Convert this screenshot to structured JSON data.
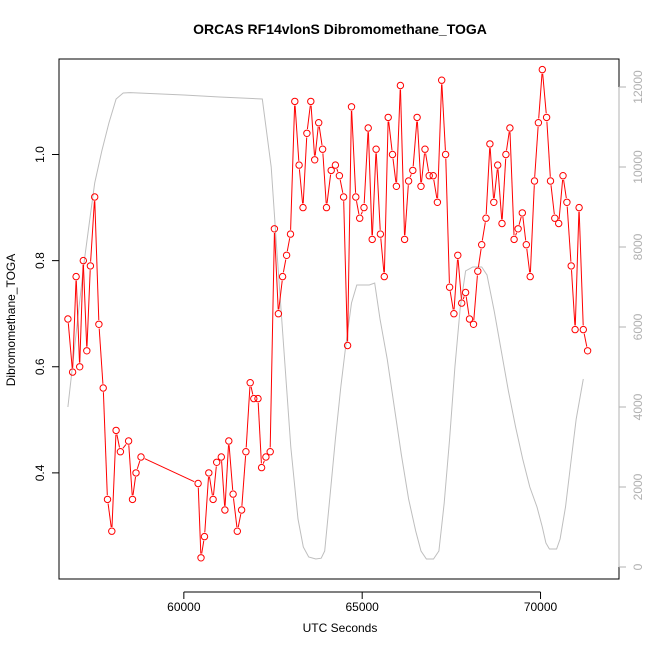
{
  "chart_data": {
    "type": "line",
    "title": "ORCAS RF14vlonS Dibromomethane_TOGA",
    "xlabel": "UTC Seconds",
    "ylabel": "Dibromomethane_TOGA",
    "xlim": [
      56500,
      72200
    ],
    "ylim": [
      0.2,
      1.18
    ],
    "y2lim": [
      -300,
      12700
    ],
    "x_ticks": [
      60000,
      65000,
      70000
    ],
    "x_tick_labels": [
      "60000",
      "65000",
      "70000"
    ],
    "y_ticks": [
      0.4,
      0.6,
      0.8,
      1.0
    ],
    "y_tick_labels": [
      "0.4",
      "0.6",
      "0.8",
      "1.0"
    ],
    "y2_ticks": [
      0,
      2000,
      4000,
      6000,
      8000,
      10000,
      12000
    ],
    "y2_tick_labels": [
      "0",
      "2000",
      "4000",
      "6000",
      "8000",
      "10000",
      "12000"
    ],
    "colors": {
      "primary": "#ff0000",
      "secondary": "#bebebe",
      "axis": "#000000",
      "axis2": "#b0b0b0"
    },
    "series": [
      {
        "role": "primary",
        "points": [
          [
            56750,
            0.69
          ],
          [
            56880,
            0.59
          ],
          [
            56980,
            0.77
          ],
          [
            57080,
            0.6
          ],
          [
            57180,
            0.8
          ],
          [
            57280,
            0.63
          ],
          [
            57380,
            0.79
          ],
          [
            57500,
            0.92
          ],
          [
            57620,
            0.68
          ],
          [
            57740,
            0.56
          ],
          [
            57860,
            0.35
          ],
          [
            57980,
            0.29
          ],
          [
            58100,
            0.48
          ],
          [
            58220,
            0.44
          ],
          [
            58450,
            0.46
          ],
          [
            58560,
            0.35
          ],
          [
            58660,
            0.4
          ],
          [
            58800,
            0.43
          ],
          [
            60400,
            0.38
          ],
          [
            60480,
            0.24
          ],
          [
            60580,
            0.28
          ],
          [
            60700,
            0.4
          ],
          [
            60820,
            0.35
          ],
          [
            60920,
            0.42
          ],
          [
            61050,
            0.43
          ],
          [
            61150,
            0.33
          ],
          [
            61260,
            0.46
          ],
          [
            61380,
            0.36
          ],
          [
            61500,
            0.29
          ],
          [
            61620,
            0.33
          ],
          [
            61740,
            0.44
          ],
          [
            61860,
            0.57
          ],
          [
            61960,
            0.54
          ],
          [
            62080,
            0.54
          ],
          [
            62180,
            0.41
          ],
          [
            62300,
            0.43
          ],
          [
            62420,
            0.44
          ],
          [
            62540,
            0.86
          ],
          [
            62650,
            0.7
          ],
          [
            62770,
            0.77
          ],
          [
            62880,
            0.81
          ],
          [
            62990,
            0.85
          ],
          [
            63110,
            1.1
          ],
          [
            63230,
            0.98
          ],
          [
            63340,
            0.9
          ],
          [
            63450,
            1.04
          ],
          [
            63560,
            1.1
          ],
          [
            63670,
            0.99
          ],
          [
            63780,
            1.06
          ],
          [
            63890,
            1.01
          ],
          [
            64000,
            0.9
          ],
          [
            64130,
            0.97
          ],
          [
            64250,
            0.98
          ],
          [
            64360,
            0.96
          ],
          [
            64480,
            0.92
          ],
          [
            64590,
            0.64
          ],
          [
            64700,
            1.09
          ],
          [
            64820,
            0.92
          ],
          [
            64930,
            0.88
          ],
          [
            65050,
            0.9
          ],
          [
            65170,
            1.05
          ],
          [
            65280,
            0.84
          ],
          [
            65390,
            1.01
          ],
          [
            65510,
            0.85
          ],
          [
            65620,
            0.77
          ],
          [
            65730,
            1.07
          ],
          [
            65850,
            1.0
          ],
          [
            65960,
            0.94
          ],
          [
            66070,
            1.13
          ],
          [
            66190,
            0.84
          ],
          [
            66300,
            0.95
          ],
          [
            66420,
            0.97
          ],
          [
            66540,
            1.07
          ],
          [
            66650,
            0.94
          ],
          [
            66760,
            1.01
          ],
          [
            66880,
            0.96
          ],
          [
            66990,
            0.96
          ],
          [
            67110,
            0.91
          ],
          [
            67230,
            1.14
          ],
          [
            67340,
            1.0
          ],
          [
            67450,
            0.75
          ],
          [
            67570,
            0.7
          ],
          [
            67680,
            0.81
          ],
          [
            67790,
            0.72
          ],
          [
            67900,
            0.74
          ],
          [
            68010,
            0.69
          ],
          [
            68120,
            0.68
          ],
          [
            68240,
            0.78
          ],
          [
            68350,
            0.83
          ],
          [
            68470,
            0.88
          ],
          [
            68580,
            1.02
          ],
          [
            68690,
            0.91
          ],
          [
            68800,
            0.98
          ],
          [
            68920,
            0.87
          ],
          [
            69030,
            1.0
          ],
          [
            69140,
            1.05
          ],
          [
            69260,
            0.84
          ],
          [
            69370,
            0.86
          ],
          [
            69490,
            0.89
          ],
          [
            69600,
            0.83
          ],
          [
            69710,
            0.77
          ],
          [
            69830,
            0.95
          ],
          [
            69940,
            1.06
          ],
          [
            70050,
            1.16
          ],
          [
            70170,
            1.07
          ],
          [
            70280,
            0.95
          ],
          [
            70400,
            0.88
          ],
          [
            70510,
            0.87
          ],
          [
            70630,
            0.96
          ],
          [
            70740,
            0.91
          ],
          [
            70860,
            0.79
          ],
          [
            70970,
            0.67
          ],
          [
            71080,
            0.9
          ],
          [
            71200,
            0.67
          ],
          [
            71320,
            0.63
          ]
        ]
      },
      {
        "role": "secondary",
        "axis": "right",
        "points": [
          [
            56750,
            4000
          ],
          [
            56900,
            5200
          ],
          [
            57050,
            6400
          ],
          [
            57200,
            7600
          ],
          [
            57350,
            8600
          ],
          [
            57500,
            9600
          ],
          [
            57700,
            10400
          ],
          [
            57900,
            11100
          ],
          [
            58100,
            11700
          ],
          [
            58300,
            11850
          ],
          [
            58500,
            11860
          ],
          [
            60000,
            11800
          ],
          [
            61000,
            11750
          ],
          [
            62200,
            11700
          ],
          [
            62450,
            10000
          ],
          [
            62600,
            8000
          ],
          [
            62800,
            5500
          ],
          [
            63000,
            3000
          ],
          [
            63200,
            1200
          ],
          [
            63350,
            500
          ],
          [
            63500,
            250
          ],
          [
            63700,
            200
          ],
          [
            63850,
            220
          ],
          [
            63950,
            400
          ],
          [
            64100,
            1800
          ],
          [
            64250,
            3200
          ],
          [
            64400,
            4500
          ],
          [
            64550,
            5600
          ],
          [
            64700,
            6600
          ],
          [
            64850,
            7050
          ],
          [
            65000,
            7050
          ],
          [
            65200,
            7050
          ],
          [
            65350,
            7100
          ],
          [
            65500,
            6200
          ],
          [
            65700,
            5200
          ],
          [
            65900,
            4000
          ],
          [
            66100,
            2800
          ],
          [
            66300,
            1700
          ],
          [
            66500,
            900
          ],
          [
            66650,
            400
          ],
          [
            66800,
            200
          ],
          [
            67000,
            200
          ],
          [
            67150,
            400
          ],
          [
            67300,
            1600
          ],
          [
            67450,
            3200
          ],
          [
            67600,
            5000
          ],
          [
            67750,
            6500
          ],
          [
            67900,
            7400
          ],
          [
            68100,
            7500
          ],
          [
            68350,
            7500
          ],
          [
            68500,
            7300
          ],
          [
            68700,
            6400
          ],
          [
            68900,
            5400
          ],
          [
            69100,
            4400
          ],
          [
            69300,
            3500
          ],
          [
            69500,
            2700
          ],
          [
            69700,
            2000
          ],
          [
            69900,
            1500
          ],
          [
            70050,
            1000
          ],
          [
            70150,
            600
          ],
          [
            70250,
            450
          ],
          [
            70350,
            450
          ],
          [
            70450,
            450
          ],
          [
            70550,
            700
          ],
          [
            70700,
            1500
          ],
          [
            70850,
            2600
          ],
          [
            71000,
            3700
          ],
          [
            71200,
            4700
          ]
        ]
      }
    ]
  }
}
